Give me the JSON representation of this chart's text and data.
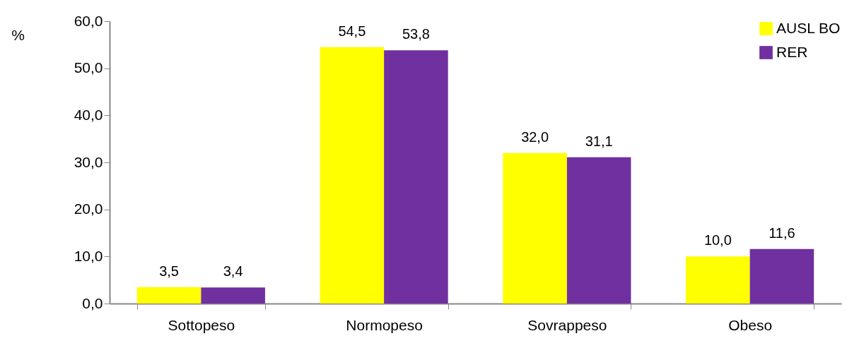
{
  "chart_data": {
    "type": "bar",
    "ylabel": "%",
    "categories": [
      "Sottopeso",
      "Normopeso",
      "Sovrappeso",
      "Obeso"
    ],
    "series": [
      {
        "name": "AUSL BO",
        "color": "#ffff00",
        "values": [
          3.5,
          54.5,
          32.0,
          10.0
        ],
        "value_labels": [
          "3,5",
          "54,5",
          "32,0",
          "10,0"
        ]
      },
      {
        "name": "RER",
        "color": "#7030a0",
        "values": [
          3.4,
          53.8,
          31.1,
          11.6
        ],
        "value_labels": [
          "3,4",
          "53,8",
          "31,1",
          "11,6"
        ]
      }
    ],
    "ylim": [
      0,
      60
    ],
    "yticks": [
      {
        "value": 0,
        "label": "0,0"
      },
      {
        "value": 10,
        "label": "10,0"
      },
      {
        "value": 20,
        "label": "20,0"
      },
      {
        "value": 30,
        "label": "30,0"
      },
      {
        "value": 40,
        "label": "40,0"
      },
      {
        "value": 50,
        "label": "50,0"
      },
      {
        "value": 60,
        "label": "60,0"
      }
    ],
    "grid": false,
    "legend": "top right"
  }
}
